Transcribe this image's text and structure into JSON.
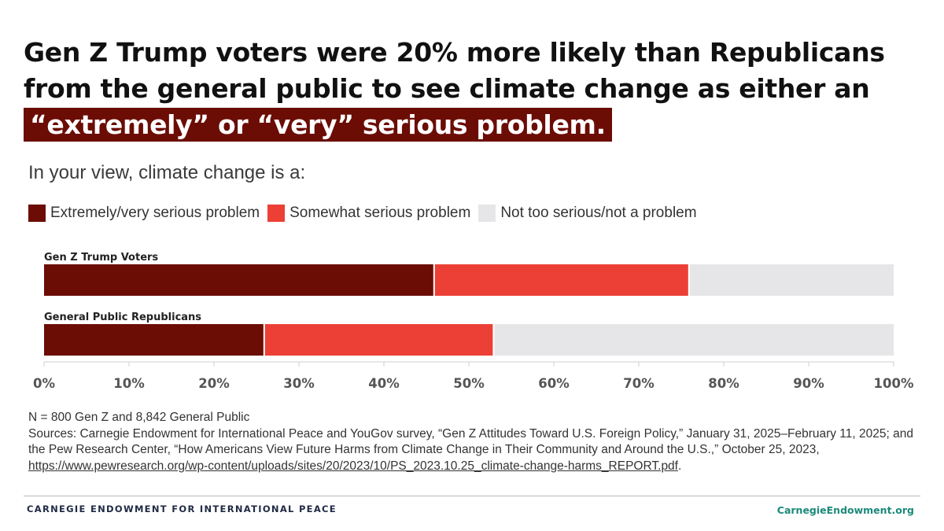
{
  "header": {
    "title_part1": "Gen Z Trump voters were 20% more likely than Republicans from the general public to see climate change as either an ",
    "title_highlight": "“extremely” or “very” serious problem."
  },
  "colors": {
    "extremely_very": "#6b0d05",
    "somewhat": "#ec4036",
    "not_too": "#e6e6e8",
    "highlight_bg": "#6b0d05",
    "footer_link": "#1b8a7a"
  },
  "chart_data": {
    "type": "bar",
    "orientation": "horizontal",
    "stacked": true,
    "title": "In your view, climate change is a:",
    "categories": [
      "Gen Z Trump Voters",
      "General Public Republicans"
    ],
    "series": [
      {
        "name": "Extremely/very serious problem",
        "values": [
          46,
          26
        ]
      },
      {
        "name": "Somewhat serious problem",
        "values": [
          30,
          27
        ]
      },
      {
        "name": "Not too serious/not a problem",
        "values": [
          24,
          47
        ]
      }
    ],
    "xlim": [
      0,
      100
    ],
    "xticks": [
      "0%",
      "10%",
      "20%",
      "30%",
      "40%",
      "50%",
      "60%",
      "70%",
      "80%",
      "90%",
      "100%"
    ],
    "legend_position": "top-left"
  },
  "notes": {
    "sample": "N = 800 Gen Z and 8,842 General Public",
    "sources": "Sources: Carnegie Endowment for International Peace and YouGov survey, “Gen Z Attitudes Toward U.S. Foreign Policy,” January 31, 2025–February 11, 2025; and the Pew Research Center, “How Americans View Future Harms from Climate Change in Their Community and Around the U.S.,” October 25, 2023,",
    "link": "https://www.pewresearch.org/wp-content/uploads/sites/20/2023/10/PS_2023.10.25_climate-change-harms_REPORT.pdf",
    "link_suffix": "."
  },
  "footer": {
    "org": "CARNEGIE ENDOWMENT FOR INTERNATIONAL PEACE",
    "site": "CarnegieEndowment.org"
  }
}
